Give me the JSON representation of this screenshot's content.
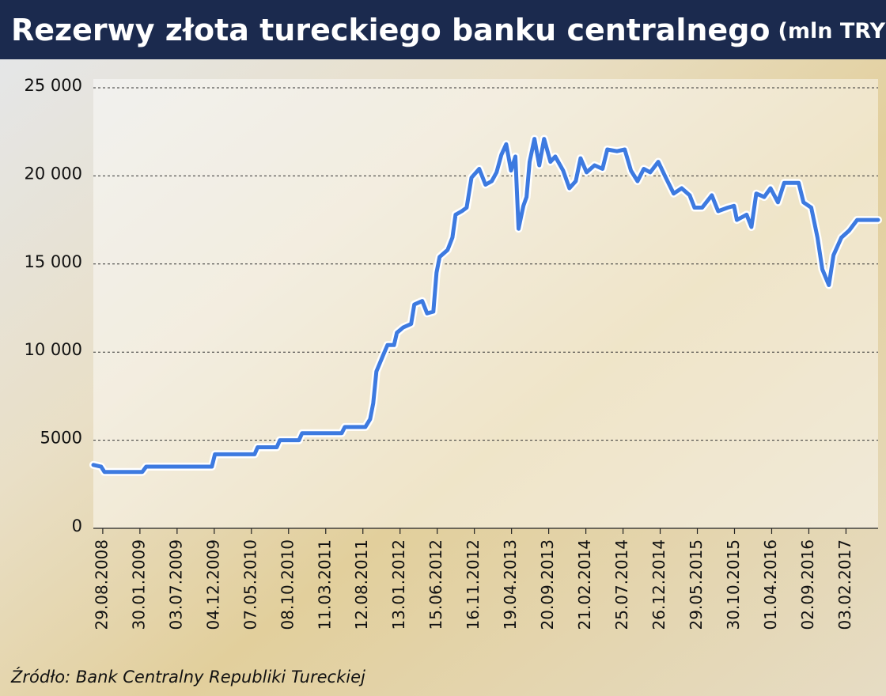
{
  "chart_data": {
    "type": "line",
    "title": "Rezerwy złota tureckiego banku centralnego",
    "subtitle": "(mln TRY)",
    "source": "Źródło: Bank Centralny Republiki Tureckiej",
    "color": "#3d7ae0",
    "grid": true,
    "ylim": [
      0,
      25000
    ],
    "yticks": [
      0,
      5000,
      {
        "value": 10000,
        "label": "10 000"
      },
      {
        "value": 15000,
        "label": "15 000"
      },
      {
        "value": 20000,
        "label": "20 000"
      },
      {
        "value": 25000,
        "label": "25 000"
      }
    ],
    "xlim": [
      "21.07.2008",
      "16.06.2017"
    ],
    "xticks": [
      "29.08.2008",
      "30.01.2009",
      "03.07.2009",
      "04.12.2009",
      "07.05.2010",
      "08.10.2010",
      "11.03.2011",
      "12.08.2011",
      "13.01.2012",
      "15.06.2012",
      "16.11.2012",
      "19.04.2013",
      "20.09.2013",
      "21.02.2014",
      "25.07.2014",
      "26.12.2014",
      "29.05.2015",
      "30.10.2015",
      "01.04.2016",
      "02.09.2016",
      "03.02.2017"
    ],
    "x": [
      "21.07.2008",
      "22.08.2008",
      "05.09.2008",
      "09.02.2009",
      "25.02.2009",
      "24.11.2009",
      "07.12.2009",
      "20.05.2010",
      "02.06.2010",
      "20.08.2010",
      "02.09.2010",
      "20.11.2010",
      "03.12.2010",
      "16.05.2011",
      "29.05.2011",
      "22.08.2011",
      "11.09.2011",
      "24.09.2011",
      "07.10.2011",
      "03.11.2011",
      "22.11.2011",
      "19.12.2011",
      "31.12.2011",
      "26.01.2012",
      "28.02.2012",
      "12.03.2012",
      "14.04.2012",
      "04.05.2012",
      "30.05.2012",
      "12.06.2012",
      "25.06.2012",
      "28.07.2012",
      "17.08.2012",
      "30.08.2012",
      "25.09.2012",
      "15.10.2012",
      "04.11.2012",
      "06.12.2012",
      "01.01.2013",
      "27.01.2013",
      "16.02.2013",
      "08.03.2013",
      "28.03.2013",
      "17.04.2013",
      "05.05.2013",
      "18.05.2013",
      "07.06.2013",
      "20.06.2013",
      "03.07.2013",
      "23.07.2013",
      "12.08.2013",
      "01.09.2013",
      "27.09.2013",
      "17.10.2013",
      "19.11.2013",
      "15.12.2013",
      "10.01.2014",
      "30.01.2014",
      "24.02.2014",
      "29.03.2014",
      "01.05.2014",
      "21.05.2014",
      "30.06.2014",
      "01.08.2014",
      "27.08.2014",
      "23.09.2014",
      "19.10.2014",
      "15.11.2014",
      "18.12.2014",
      "18.01.2015",
      "20.02.2015",
      "25.03.2015",
      "27.04.2015",
      "17.05.2015",
      "18.06.2015",
      "28.07.2015",
      "23.08.2015",
      "02.10.2015",
      "28.10.2015",
      "09.11.2015",
      "19.12.2015",
      "08.01.2016",
      "28.01.2016",
      "01.03.2016",
      "27.03.2016",
      "27.04.2016",
      "23.05.2016",
      "22.07.2016",
      "11.08.2016",
      "12.09.2016",
      "08.10.2016",
      "28.10.2016",
      "24.11.2016",
      "13.12.2016",
      "15.01.2017",
      "16.02.2017",
      "21.03.2017",
      "16.06.2017"
    ],
    "values": [
      3600,
      3500,
      3200,
      3200,
      3500,
      3500,
      4200,
      4200,
      4600,
      4600,
      5000,
      5000,
      5400,
      5400,
      5750,
      5750,
      6200,
      7100,
      8900,
      9800,
      10400,
      10400,
      11100,
      11400,
      11600,
      12700,
      12900,
      12200,
      12300,
      14500,
      15400,
      15800,
      16500,
      17800,
      18000,
      18200,
      19900,
      20400,
      19500,
      19700,
      20200,
      21200,
      21800,
      20300,
      21100,
      17000,
      18300,
      18800,
      20800,
      22100,
      20600,
      22100,
      20800,
      21100,
      20300,
      19300,
      19700,
      21000,
      20200,
      20600,
      20400,
      21500,
      21400,
      21500,
      20300,
      19700,
      20400,
      20200,
      20800,
      19900,
      19000,
      19300,
      18900,
      18200,
      18200,
      18900,
      18000,
      18200,
      18300,
      17500,
      17800,
      17100,
      19000,
      18800,
      19300,
      18500,
      19600,
      19600,
      18500,
      18200,
      16500,
      14700,
      13800,
      15500,
      16500,
      16900,
      17500,
      17500
    ]
  }
}
